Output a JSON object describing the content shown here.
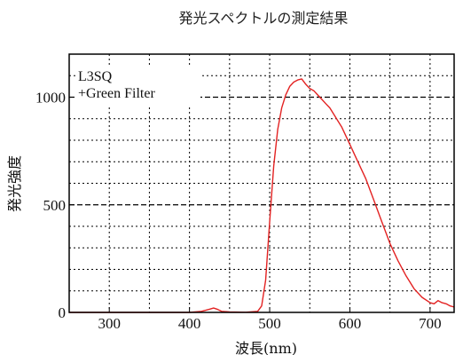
{
  "chart_data": {
    "type": "line",
    "title": "発光スペクトルの測定結果",
    "xlabel": "波長(nm)",
    "ylabel": "発光強度",
    "xlim": [
      250,
      730
    ],
    "ylim": [
      0,
      1200
    ],
    "x_ticks": [
      300,
      400,
      500,
      600,
      700
    ],
    "y_ticks": [
      0,
      500,
      1000
    ],
    "x_minor_grid": [
      250,
      300,
      350,
      400,
      450,
      500,
      550,
      600,
      650,
      700
    ],
    "y_minor_grid": [
      100,
      200,
      300,
      400,
      600,
      700,
      800,
      900,
      1100
    ],
    "grid": "dotted; dashed at 500 and 1000",
    "legend_position": "top-left",
    "legend_lines": [
      "L3SQ",
      "+Green Filter"
    ],
    "series_color": "#e32222",
    "series": [
      {
        "x": [
          250,
          300,
          350,
          400,
          415,
          425,
          430,
          435,
          440,
          450,
          470,
          485,
          490,
          495,
          500,
          505,
          510,
          515,
          520,
          525,
          530,
          535,
          540,
          545,
          550,
          555,
          560,
          565,
          570,
          575,
          580,
          590,
          600,
          610,
          620,
          630,
          640,
          650,
          660,
          670,
          680,
          690,
          700,
          705,
          710,
          715,
          720,
          725,
          730
        ],
        "y": [
          0,
          0,
          0,
          0,
          5,
          15,
          20,
          14,
          5,
          2,
          1,
          5,
          30,
          150,
          420,
          680,
          850,
          950,
          1010,
          1050,
          1070,
          1080,
          1085,
          1060,
          1040,
          1030,
          1010,
          990,
          970,
          950,
          920,
          860,
          780,
          700,
          620,
          520,
          420,
          320,
          240,
          170,
          110,
          70,
          45,
          40,
          55,
          45,
          40,
          30,
          25
        ]
      }
    ]
  }
}
